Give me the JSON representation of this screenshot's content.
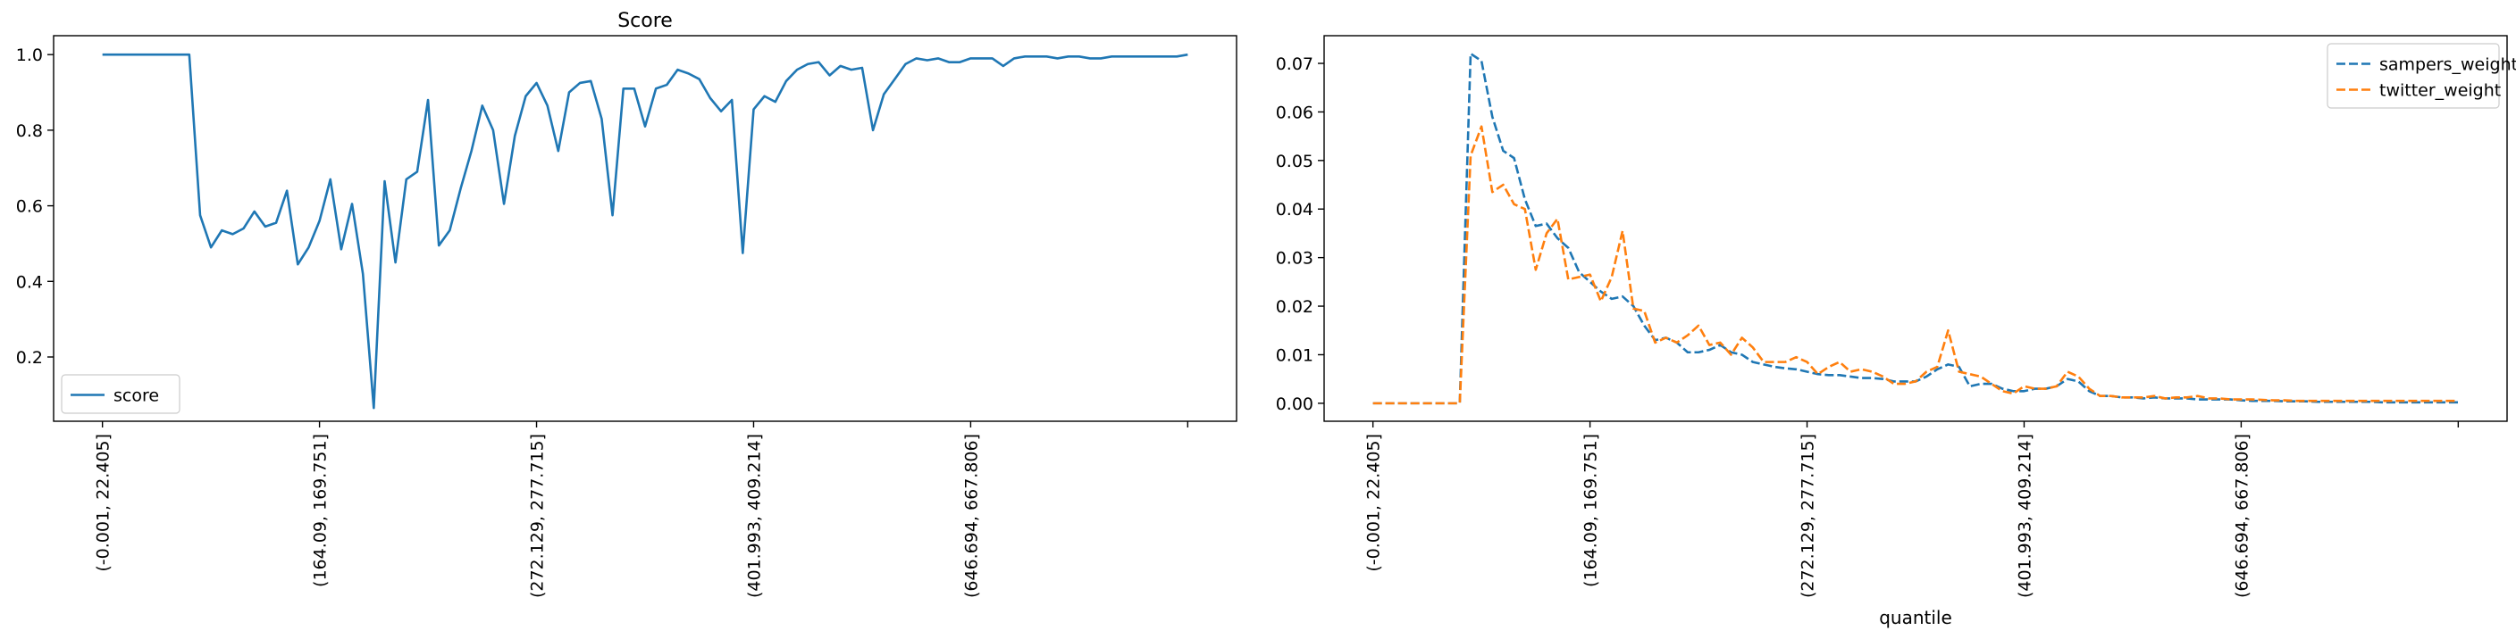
{
  "chart_data": [
    {
      "type": "line",
      "title": "Score",
      "xlabel": "",
      "ylabel": "",
      "ylim": [
        0.03,
        1.05
      ],
      "xlim": [
        -4.5,
        104.5
      ],
      "yticks": [
        0.2,
        0.4,
        0.6,
        0.8,
        1.0
      ],
      "ytick_labels": [
        "0.2",
        "0.4",
        "0.6",
        "0.8",
        "1.0"
      ],
      "xticks": [
        0,
        20,
        40,
        60,
        80,
        100
      ],
      "xtick_labels": [
        "(-0.001, 22.405]",
        "(164.09, 169.751]",
        "(272.129, 277.715]",
        "(401.993, 409.214]",
        "(646.694, 667.806]",
        ""
      ],
      "legend": "lower left",
      "series": [
        {
          "name": "score",
          "color": "#1f77b4",
          "dash": "solid",
          "x": [
            0,
            1,
            2,
            3,
            4,
            5,
            6,
            7,
            8,
            9,
            10,
            11,
            12,
            13,
            14,
            15,
            16,
            17,
            18,
            19,
            20,
            21,
            22,
            23,
            24,
            25,
            26,
            27,
            28,
            29,
            30,
            31,
            32,
            33,
            34,
            35,
            36,
            37,
            38,
            39,
            40,
            41,
            42,
            43,
            44,
            45,
            46,
            47,
            48,
            49,
            50,
            51,
            52,
            53,
            54,
            55,
            56,
            57,
            58,
            59,
            60,
            61,
            62,
            63,
            64,
            65,
            66,
            67,
            68,
            69,
            70,
            71,
            72,
            73,
            74,
            75,
            76,
            77,
            78,
            79,
            80,
            81,
            82,
            83,
            84,
            85,
            86,
            87,
            88,
            89,
            90,
            91,
            92,
            93,
            94,
            95,
            96,
            97,
            98,
            99,
            100
          ],
          "values": [
            1.0,
            1.0,
            1.0,
            1.0,
            1.0,
            1.0,
            1.0,
            1.0,
            1.0,
            0.575,
            0.49,
            0.535,
            0.525,
            0.54,
            0.585,
            0.545,
            0.555,
            0.64,
            0.445,
            0.49,
            0.56,
            0.67,
            0.485,
            0.605,
            0.42,
            0.065,
            0.665,
            0.45,
            0.67,
            0.69,
            0.88,
            0.495,
            0.535,
            0.645,
            0.745,
            0.865,
            0.8,
            0.605,
            0.785,
            0.89,
            0.925,
            0.865,
            0.745,
            0.9,
            0.925,
            0.93,
            0.83,
            0.575,
            0.91,
            0.91,
            0.81,
            0.91,
            0.92,
            0.96,
            0.95,
            0.935,
            0.885,
            0.85,
            0.88,
            0.475,
            0.855,
            0.89,
            0.875,
            0.93,
            0.96,
            0.975,
            0.98,
            0.945,
            0.97,
            0.96,
            0.965,
            0.8,
            0.895,
            0.935,
            0.975,
            0.99,
            0.985,
            0.99,
            0.98,
            0.98,
            0.99,
            0.99,
            0.99,
            0.97,
            0.99,
            0.995,
            0.995,
            0.995,
            0.99,
            0.995,
            0.995,
            0.99,
            0.99,
            0.995,
            0.995,
            0.995,
            0.995,
            0.995,
            0.995,
            0.995,
            1.0
          ]
        }
      ]
    },
    {
      "type": "line",
      "title": "",
      "xlabel": "quantile",
      "ylabel": "",
      "ylim": [
        -0.0037,
        0.0757
      ],
      "xlim": [
        -4.5,
        104.5
      ],
      "yticks": [
        0.0,
        0.01,
        0.02,
        0.03,
        0.04,
        0.05,
        0.06,
        0.07
      ],
      "ytick_labels": [
        "0.00",
        "0.01",
        "0.02",
        "0.03",
        "0.04",
        "0.05",
        "0.06",
        "0.07"
      ],
      "xticks": [
        0,
        20,
        40,
        60,
        80,
        100
      ],
      "xtick_labels": [
        "(-0.001, 22.405]",
        "(164.09, 169.751]",
        "(272.129, 277.715]",
        "(401.993, 409.214]",
        "(646.694, 667.806]",
        ""
      ],
      "legend": "upper right",
      "series": [
        {
          "name": "sampers_weight",
          "color": "#1f77b4",
          "dash": "dashed",
          "x": [
            0,
            1,
            2,
            3,
            4,
            5,
            6,
            7,
            8,
            9,
            10,
            11,
            12,
            13,
            14,
            15,
            16,
            17,
            18,
            19,
            20,
            21,
            22,
            23,
            24,
            25,
            26,
            27,
            28,
            29,
            30,
            31,
            32,
            33,
            34,
            35,
            36,
            37,
            38,
            39,
            40,
            41,
            42,
            43,
            44,
            45,
            46,
            47,
            48,
            49,
            50,
            51,
            52,
            53,
            54,
            55,
            56,
            57,
            58,
            59,
            60,
            61,
            62,
            63,
            64,
            65,
            66,
            67,
            68,
            69,
            70,
            71,
            72,
            73,
            74,
            75,
            76,
            77,
            78,
            79,
            80,
            81,
            82,
            83,
            84,
            85,
            86,
            87,
            88,
            89,
            90,
            91,
            92,
            93,
            94,
            95,
            96,
            97,
            98,
            99,
            100
          ],
          "values": [
            0,
            0,
            0,
            0,
            0,
            0,
            0,
            0,
            0,
            0.072,
            0.0705,
            0.059,
            0.052,
            0.0505,
            0.042,
            0.0365,
            0.037,
            0.034,
            0.032,
            0.027,
            0.025,
            0.023,
            0.0215,
            0.022,
            0.02,
            0.016,
            0.013,
            0.0135,
            0.0125,
            0.0105,
            0.0105,
            0.011,
            0.012,
            0.0105,
            0.01,
            0.0085,
            0.008,
            0.0075,
            0.0072,
            0.007,
            0.0065,
            0.006,
            0.0058,
            0.0058,
            0.0055,
            0.0052,
            0.0052,
            0.005,
            0.0045,
            0.0045,
            0.0045,
            0.0055,
            0.007,
            0.008,
            0.0075,
            0.0035,
            0.004,
            0.004,
            0.003,
            0.0025,
            0.0025,
            0.003,
            0.003,
            0.0035,
            0.005,
            0.0045,
            0.0025,
            0.0015,
            0.0015,
            0.0012,
            0.0012,
            0.001,
            0.0012,
            0.001,
            0.001,
            0.001,
            0.0008,
            0.0008,
            0.0008,
            0.0008,
            0.0006,
            0.0005,
            0.0005,
            0.0005,
            0.0004,
            0.0004,
            0.0004,
            0.0003,
            0.0003,
            0.0003,
            0.0003,
            0.0003,
            0.0003,
            0.0002,
            0.0002,
            0.0002,
            0.0002,
            0.0002,
            0.0002,
            0.0002,
            0.0002
          ]
        },
        {
          "name": "twitter_weight",
          "color": "#ff7f0e",
          "dash": "dashed",
          "x": [
            0,
            1,
            2,
            3,
            4,
            5,
            6,
            7,
            8,
            9,
            10,
            11,
            12,
            13,
            14,
            15,
            16,
            17,
            18,
            19,
            20,
            21,
            22,
            23,
            24,
            25,
            26,
            27,
            28,
            29,
            30,
            31,
            32,
            33,
            34,
            35,
            36,
            37,
            38,
            39,
            40,
            41,
            42,
            43,
            44,
            45,
            46,
            47,
            48,
            49,
            50,
            51,
            52,
            53,
            54,
            55,
            56,
            57,
            58,
            59,
            60,
            61,
            62,
            63,
            64,
            65,
            66,
            67,
            68,
            69,
            70,
            71,
            72,
            73,
            74,
            75,
            76,
            77,
            78,
            79,
            80,
            81,
            82,
            83,
            84,
            85,
            86,
            87,
            88,
            89,
            90,
            91,
            92,
            93,
            94,
            95,
            96,
            97,
            98,
            99,
            100
          ],
          "values": [
            0,
            0,
            0,
            0,
            0,
            0,
            0,
            0,
            0,
            0.051,
            0.057,
            0.0435,
            0.045,
            0.041,
            0.04,
            0.0275,
            0.035,
            0.038,
            0.0255,
            0.026,
            0.0265,
            0.021,
            0.026,
            0.0355,
            0.0195,
            0.019,
            0.0125,
            0.0135,
            0.0125,
            0.014,
            0.016,
            0.012,
            0.0125,
            0.01,
            0.0135,
            0.0115,
            0.0085,
            0.0085,
            0.0085,
            0.0095,
            0.0085,
            0.006,
            0.0075,
            0.0085,
            0.0065,
            0.007,
            0.0065,
            0.0055,
            0.004,
            0.004,
            0.0045,
            0.0065,
            0.0075,
            0.015,
            0.0065,
            0.006,
            0.0055,
            0.004,
            0.0025,
            0.002,
            0.0035,
            0.003,
            0.003,
            0.0035,
            0.0065,
            0.0055,
            0.003,
            0.0015,
            0.0015,
            0.0012,
            0.0012,
            0.0012,
            0.0015,
            0.001,
            0.0012,
            0.0012,
            0.0015,
            0.001,
            0.001,
            0.0008,
            0.0008,
            0.0008,
            0.0007,
            0.0006,
            0.0006,
            0.0005,
            0.0005,
            0.0005,
            0.0005,
            0.0005,
            0.0005,
            0.0005,
            0.0005,
            0.0005,
            0.0005,
            0.0005,
            0.0005,
            0.0005,
            0.0005,
            0.0005,
            0.0005
          ]
        }
      ]
    }
  ]
}
